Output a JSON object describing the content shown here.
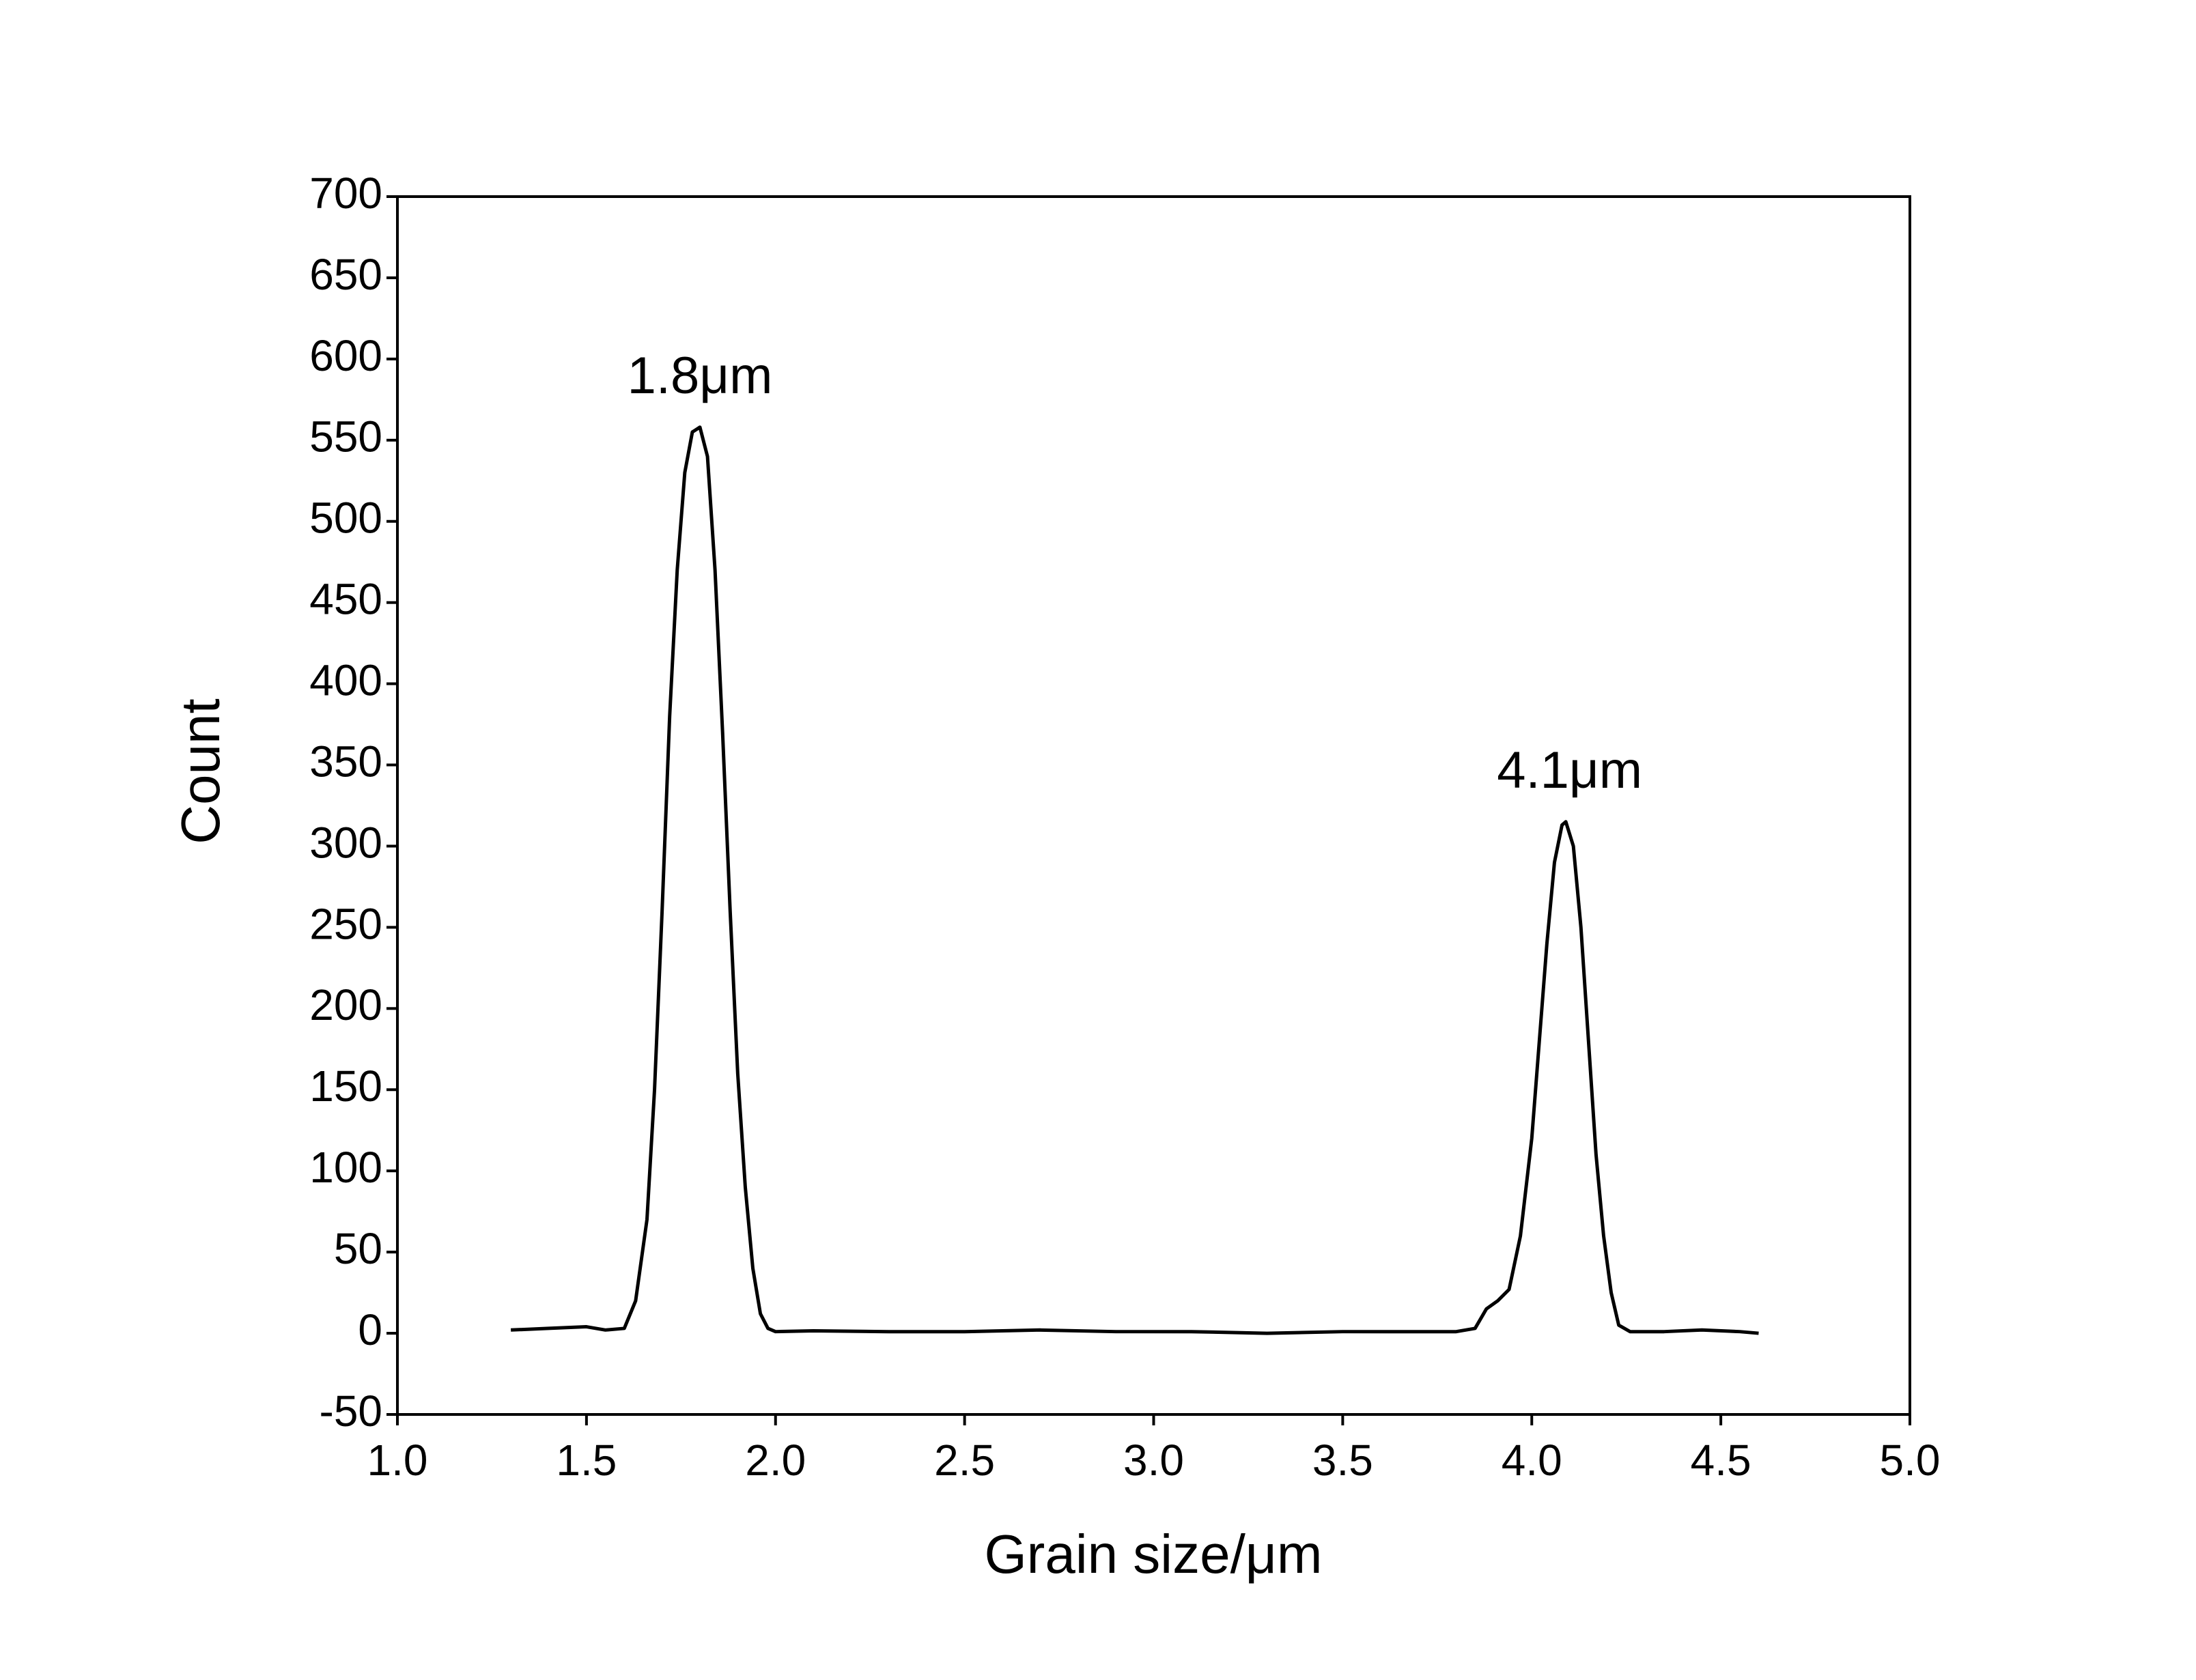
{
  "chart_data": {
    "type": "line",
    "x_label": "Grain size/μm",
    "y_label": "Count",
    "x": [
      1.3,
      1.4,
      1.5,
      1.55,
      1.6,
      1.63,
      1.66,
      1.68,
      1.7,
      1.72,
      1.74,
      1.76,
      1.78,
      1.8,
      1.82,
      1.84,
      1.86,
      1.88,
      1.9,
      1.92,
      1.94,
      1.96,
      1.98,
      2.0,
      2.1,
      2.3,
      2.5,
      2.7,
      2.9,
      3.1,
      3.3,
      3.5,
      3.7,
      3.8,
      3.85,
      3.88,
      3.91,
      3.94,
      3.97,
      4.0,
      4.02,
      4.04,
      4.06,
      4.08,
      4.09,
      4.11,
      4.13,
      4.15,
      4.17,
      4.19,
      4.21,
      4.23,
      4.26,
      4.35,
      4.45,
      4.55,
      4.6
    ],
    "series": [
      {
        "color": "#000000",
        "values": [
          2,
          3,
          4,
          2,
          3,
          20,
          70,
          150,
          260,
          380,
          470,
          530,
          555,
          558,
          540,
          470,
          370,
          260,
          160,
          90,
          40,
          12,
          3,
          1,
          1.5,
          1,
          1,
          2,
          1,
          1,
          0,
          1,
          1,
          1,
          3,
          15,
          20,
          27,
          60,
          120,
          180,
          240,
          290,
          313,
          315,
          300,
          250,
          180,
          110,
          60,
          25,
          5,
          1,
          1,
          2,
          1,
          0
        ]
      }
    ],
    "annotations": [
      {
        "text": "1.8μm",
        "x": 1.8
      },
      {
        "text": "4.1μm",
        "x": 4.1
      }
    ],
    "xlim": [
      1.0,
      5.0
    ],
    "xticks": [
      {
        "value": 1.0,
        "label": "1.0"
      },
      {
        "value": 1.5,
        "label": "1.5"
      },
      {
        "value": 2.0,
        "label": "2.0"
      },
      {
        "value": 2.5,
        "label": "2.5"
      },
      {
        "value": 3.0,
        "label": "3.0"
      },
      {
        "value": 3.5,
        "label": "3.5"
      },
      {
        "value": 4.0,
        "label": "4.0"
      },
      {
        "value": 4.5,
        "label": "4.5"
      },
      {
        "value": 5.0,
        "label": "5.0"
      }
    ],
    "ylim": [
      -50,
      700
    ],
    "yticks": [
      -50,
      0,
      50,
      100,
      150,
      200,
      250,
      300,
      350,
      400,
      450,
      500,
      550,
      600,
      650,
      700
    ],
    "grid": false
  }
}
